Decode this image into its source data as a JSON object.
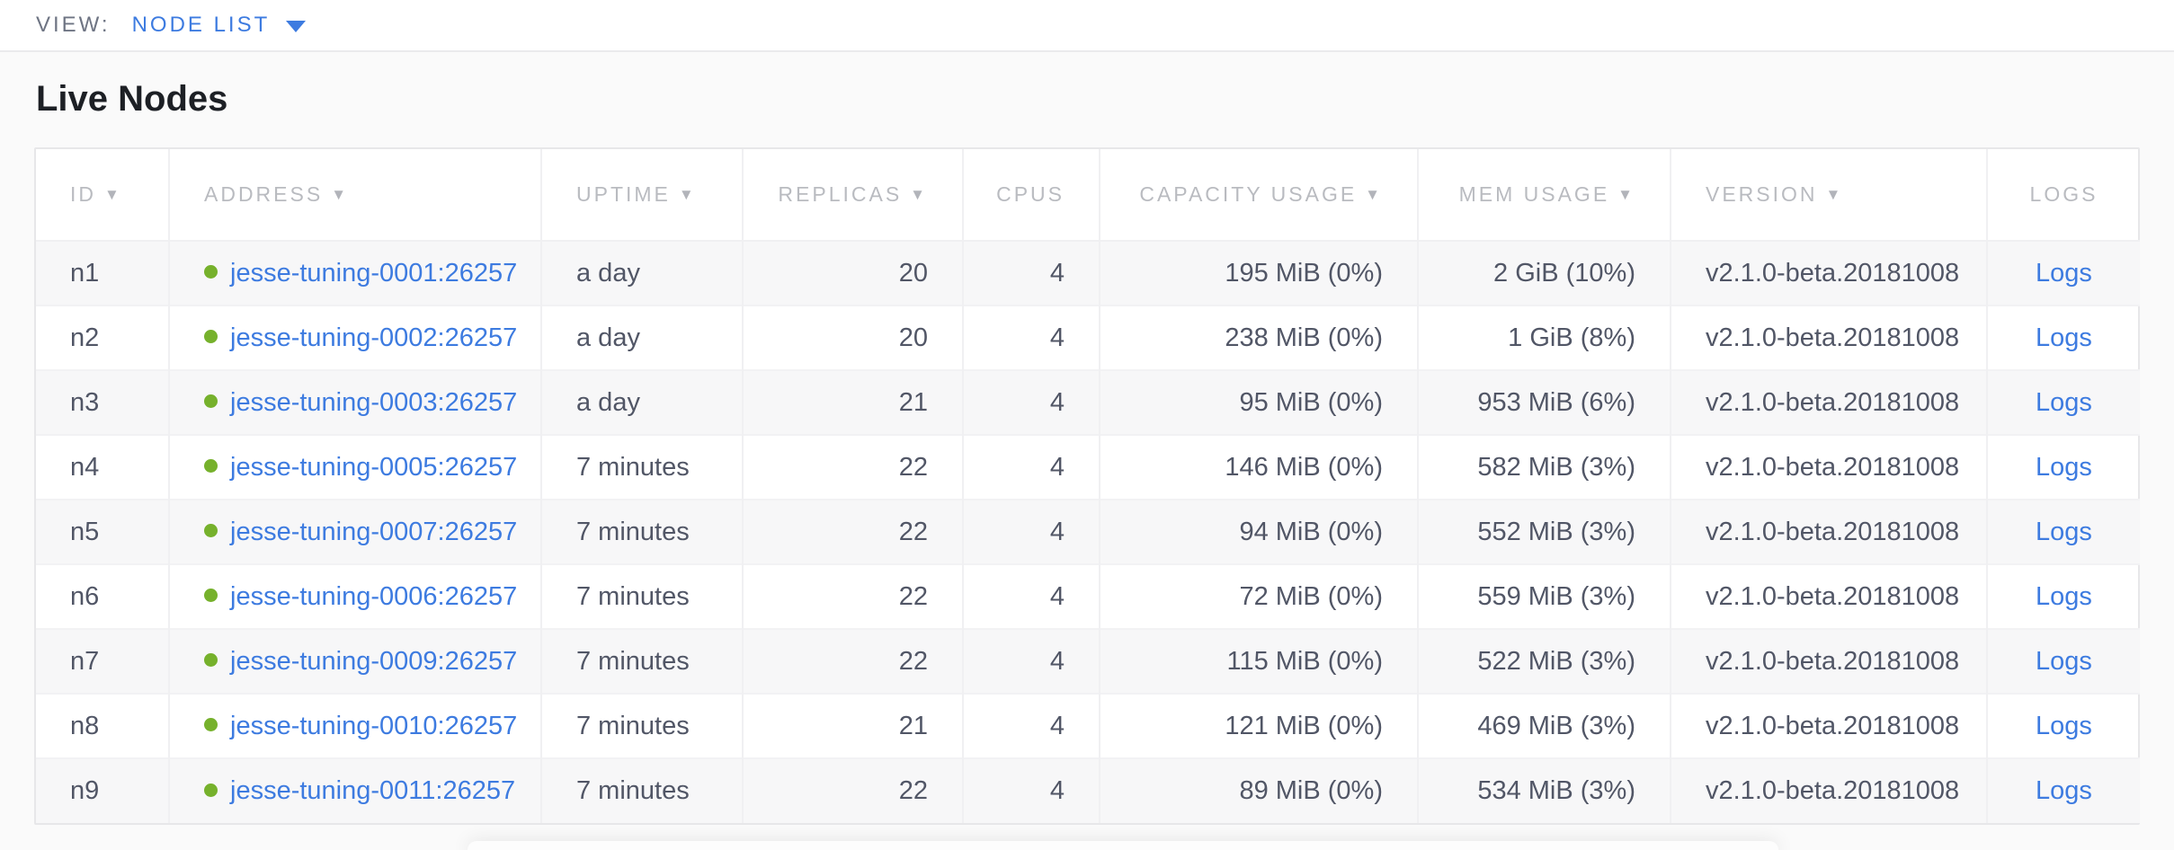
{
  "toolbar": {
    "view_label": "VIEW:",
    "view_value": "NODE LIST"
  },
  "page": {
    "title": "Live Nodes"
  },
  "icons": {
    "sort_desc": "▼",
    "chevron_down": "caret-down",
    "node_health_dot": "healthy-green-dot"
  },
  "colors": {
    "accent_blue": "#3D7BE0",
    "link_blue": "#3D7BE0",
    "healthy_green": "#76B12C",
    "header_gray": "#B9BBC0",
    "body_text": "#515666"
  },
  "table": {
    "columns": [
      {
        "key": "id",
        "label": "ID",
        "sortable": true,
        "align": "left"
      },
      {
        "key": "address",
        "label": "ADDRESS",
        "sortable": true,
        "align": "left"
      },
      {
        "key": "uptime",
        "label": "UPTIME",
        "sortable": true,
        "align": "left"
      },
      {
        "key": "replicas",
        "label": "REPLICAS",
        "sortable": true,
        "align": "right"
      },
      {
        "key": "cpus",
        "label": "CPUS",
        "sortable": false,
        "align": "right"
      },
      {
        "key": "capacity",
        "label": "CAPACITY USAGE",
        "sortable": true,
        "align": "right"
      },
      {
        "key": "mem",
        "label": "MEM USAGE",
        "sortable": true,
        "align": "right"
      },
      {
        "key": "version",
        "label": "VERSION",
        "sortable": true,
        "align": "left"
      },
      {
        "key": "logs",
        "label": "LOGS",
        "sortable": false,
        "align": "center"
      }
    ],
    "rows": [
      {
        "id": "n1",
        "address": "jesse-tuning-0001:26257",
        "uptime": "a day",
        "replicas": "20",
        "cpus": "4",
        "capacity": "195 MiB (0%)",
        "mem": "2 GiB (10%)",
        "version": "v2.1.0-beta.20181008",
        "logs": "Logs"
      },
      {
        "id": "n2",
        "address": "jesse-tuning-0002:26257",
        "uptime": "a day",
        "replicas": "20",
        "cpus": "4",
        "capacity": "238 MiB (0%)",
        "mem": "1 GiB (8%)",
        "version": "v2.1.0-beta.20181008",
        "logs": "Logs"
      },
      {
        "id": "n3",
        "address": "jesse-tuning-0003:26257",
        "uptime": "a day",
        "replicas": "21",
        "cpus": "4",
        "capacity": "95 MiB (0%)",
        "mem": "953 MiB (6%)",
        "version": "v2.1.0-beta.20181008",
        "logs": "Logs"
      },
      {
        "id": "n4",
        "address": "jesse-tuning-0005:26257",
        "uptime": "7 minutes",
        "replicas": "22",
        "cpus": "4",
        "capacity": "146 MiB (0%)",
        "mem": "582 MiB (3%)",
        "version": "v2.1.0-beta.20181008",
        "logs": "Logs"
      },
      {
        "id": "n5",
        "address": "jesse-tuning-0007:26257",
        "uptime": "7 minutes",
        "replicas": "22",
        "cpus": "4",
        "capacity": "94 MiB (0%)",
        "mem": "552 MiB (3%)",
        "version": "v2.1.0-beta.20181008",
        "logs": "Logs"
      },
      {
        "id": "n6",
        "address": "jesse-tuning-0006:26257",
        "uptime": "7 minutes",
        "replicas": "22",
        "cpus": "4",
        "capacity": "72 MiB (0%)",
        "mem": "559 MiB (3%)",
        "version": "v2.1.0-beta.20181008",
        "logs": "Logs"
      },
      {
        "id": "n7",
        "address": "jesse-tuning-0009:26257",
        "uptime": "7 minutes",
        "replicas": "22",
        "cpus": "4",
        "capacity": "115 MiB (0%)",
        "mem": "522 MiB (3%)",
        "version": "v2.1.0-beta.20181008",
        "logs": "Logs"
      },
      {
        "id": "n8",
        "address": "jesse-tuning-0010:26257",
        "uptime": "7 minutes",
        "replicas": "21",
        "cpus": "4",
        "capacity": "121 MiB (0%)",
        "mem": "469 MiB (3%)",
        "version": "v2.1.0-beta.20181008",
        "logs": "Logs"
      },
      {
        "id": "n9",
        "address": "jesse-tuning-0011:26257",
        "uptime": "7 minutes",
        "replicas": "22",
        "cpus": "4",
        "capacity": "89 MiB (0%)",
        "mem": "534 MiB (3%)",
        "version": "v2.1.0-beta.20181008",
        "logs": "Logs"
      }
    ]
  }
}
